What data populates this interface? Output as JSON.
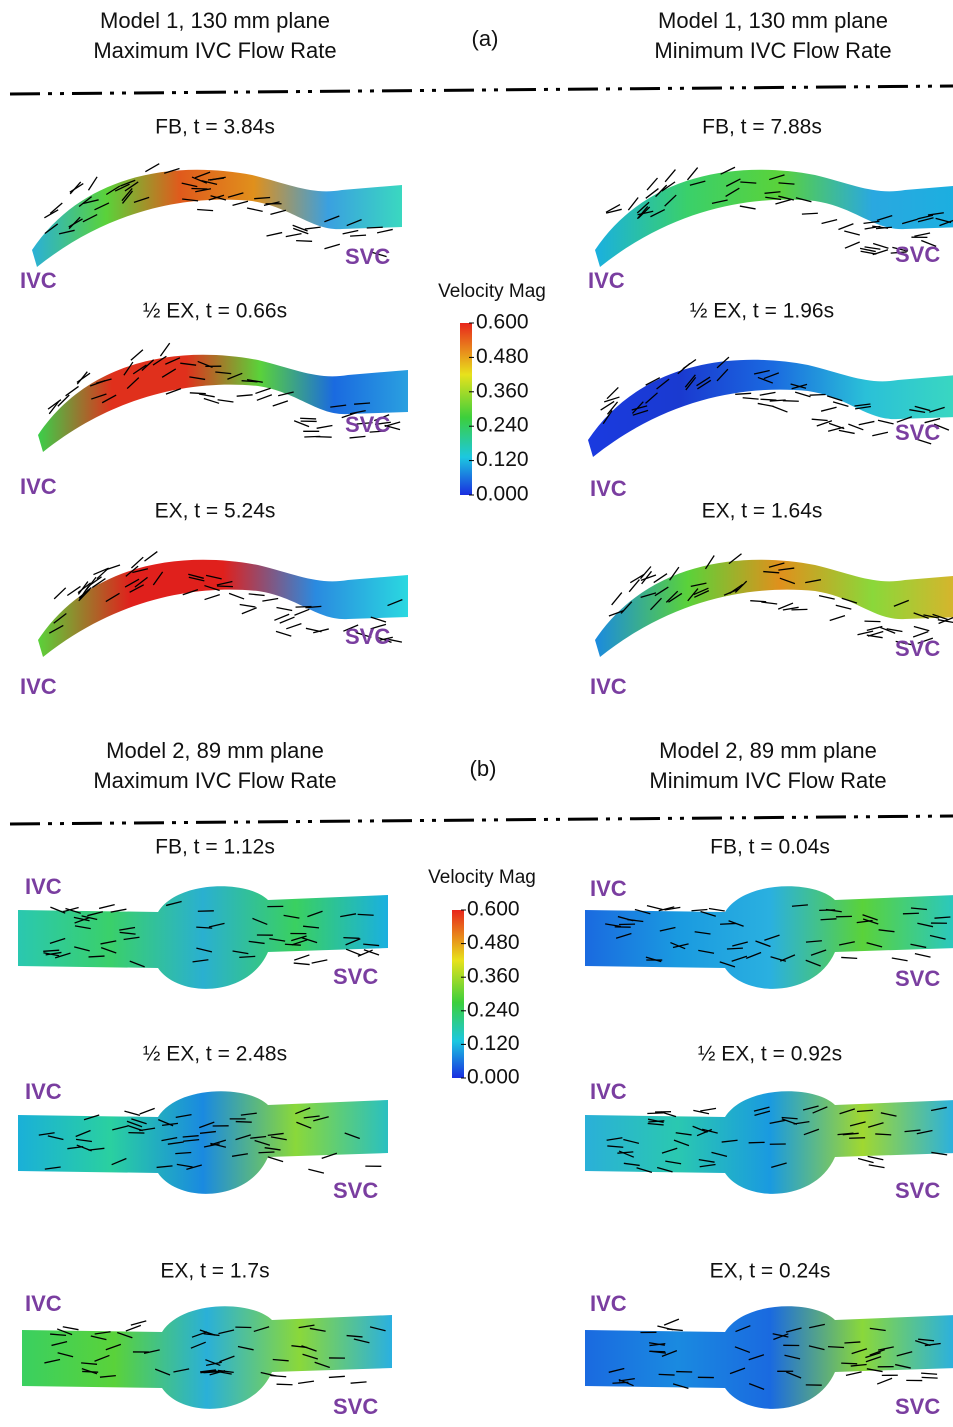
{
  "panels": [
    {
      "label": "(a)",
      "left_header": [
        "Model 1, 130 mm plane",
        "Maximum IVC Flow Rate"
      ],
      "right_header": [
        "Model 1, 130 mm plane",
        "Minimum IVC Flow Rate"
      ],
      "colorbar": {
        "title": "Velocity Mag",
        "ticks": [
          "0.600",
          "0.480",
          "0.360",
          "0.240",
          "0.120",
          "0.000"
        ]
      },
      "left": [
        {
          "title": "FB, t = 3.84s",
          "inlet": "IVC",
          "outlet": "SVC"
        },
        {
          "title": "½ EX, t = 0.66s",
          "inlet": "IVC",
          "outlet": "SVC"
        },
        {
          "title": "EX, t = 5.24s",
          "inlet": "IVC",
          "outlet": "SVC"
        }
      ],
      "right": [
        {
          "title": "FB, t = 7.88s",
          "inlet": "IVC",
          "outlet": "SVC"
        },
        {
          "title": "½ EX, t = 1.96s",
          "inlet": "IVC",
          "outlet": "SVC"
        },
        {
          "title": "EX, t = 1.64s",
          "inlet": "IVC",
          "outlet": "SVC"
        }
      ]
    },
    {
      "label": "(b)",
      "left_header": [
        "Model 2, 89 mm plane",
        "Maximum IVC Flow Rate"
      ],
      "right_header": [
        "Model 2, 89 mm plane",
        "Minimum IVC Flow Rate"
      ],
      "colorbar": {
        "title": "Velocity Mag",
        "ticks": [
          "0.600",
          "0.480",
          "0.360",
          "0.240",
          "0.120",
          "0.000"
        ]
      },
      "left": [
        {
          "title": "FB, t = 1.12s",
          "inlet": "IVC",
          "outlet": "SVC"
        },
        {
          "title": "½ EX, t = 2.48s",
          "inlet": "IVC",
          "outlet": "SVC"
        },
        {
          "title": "EX, t = 1.7s",
          "inlet": "IVC",
          "outlet": "SVC"
        }
      ],
      "right": [
        {
          "title": "FB, t = 0.04s",
          "inlet": "IVC",
          "outlet": "SVC"
        },
        {
          "title": "½ EX, t = 0.92s",
          "inlet": "IVC",
          "outlet": "SVC"
        },
        {
          "title": "EX, t = 0.24s",
          "inlet": "IVC",
          "outlet": "SVC"
        }
      ]
    }
  ]
}
